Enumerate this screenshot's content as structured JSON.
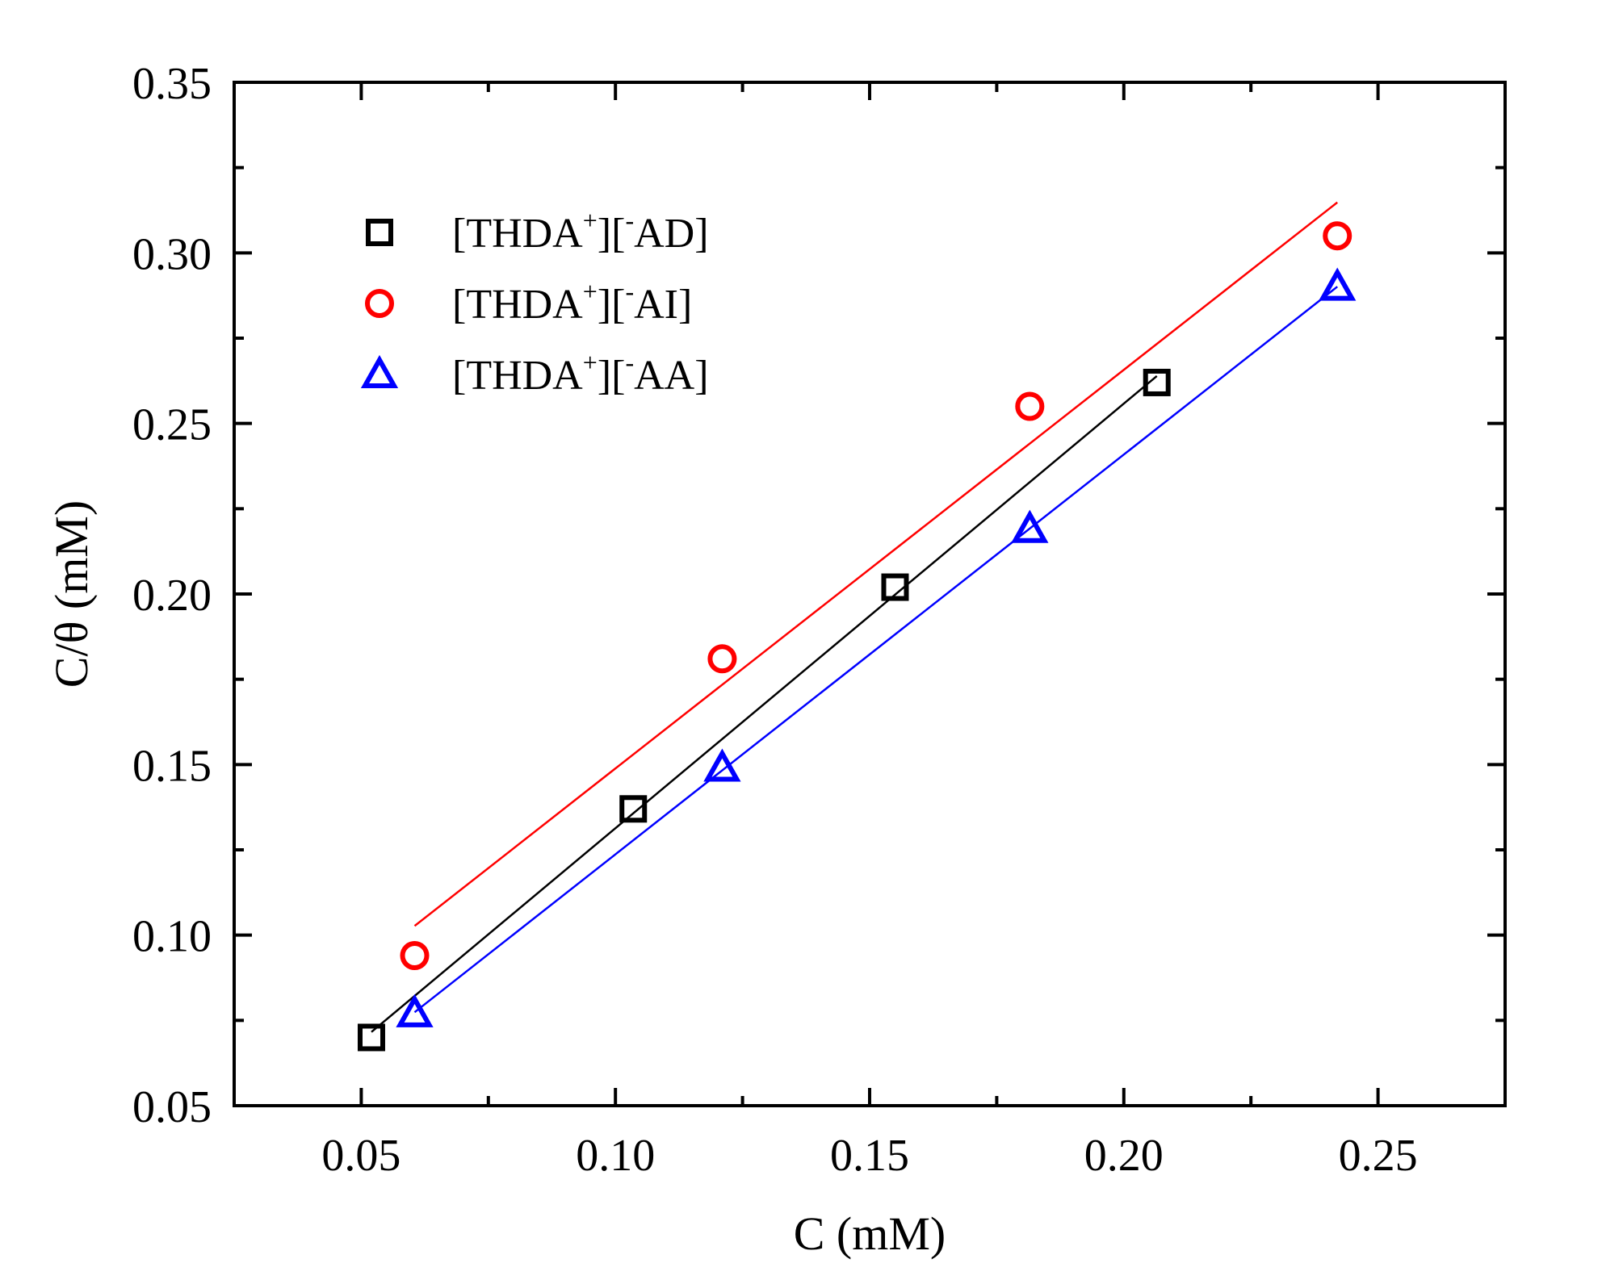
{
  "chart_data": {
    "type": "scatter",
    "title": "",
    "xlabel": "C (mM)",
    "ylabel": "C/θ (mM)",
    "xlim": [
      0.025,
      0.275
    ],
    "ylim": [
      0.05,
      0.35
    ],
    "xticks": [
      0.05,
      0.1,
      0.15,
      0.2,
      0.25
    ],
    "yticks": [
      0.05,
      0.1,
      0.15,
      0.2,
      0.25,
      0.3,
      0.35
    ],
    "xtick_labels": [
      "0.05",
      "0.10",
      "0.15",
      "0.20",
      "0.25"
    ],
    "ytick_labels": [
      "0.05",
      "0.10",
      "0.15",
      "0.20",
      "0.25",
      "0.30",
      "0.35"
    ],
    "grid": false,
    "legend_position": "top-left",
    "series": [
      {
        "name": "[THDA+][-AD]",
        "legend_parts": [
          "[THDA",
          "+",
          "][",
          "-",
          "AD]"
        ],
        "marker": "square",
        "color": "#000000",
        "x": [
          0.052,
          0.1035,
          0.155,
          0.2065
        ],
        "y": [
          0.07,
          0.137,
          0.202,
          0.262
        ],
        "fit_x": [
          0.052,
          0.2065
        ]
      },
      {
        "name": "[THDA+][-AI]",
        "legend_parts": [
          "[THDA",
          "+",
          "][",
          "-",
          "AI]"
        ],
        "marker": "circle",
        "color": "#ff0000",
        "x": [
          0.0605,
          0.121,
          0.1815,
          0.242
        ],
        "y": [
          0.094,
          0.181,
          0.255,
          0.305
        ],
        "fit_x": [
          0.0605,
          0.242
        ]
      },
      {
        "name": "[THDA+][-AA]",
        "legend_parts": [
          "[THDA",
          "+",
          "][",
          "-",
          "AA]"
        ],
        "marker": "triangle",
        "color": "#0000ff",
        "x": [
          0.0605,
          0.121,
          0.1815,
          0.242
        ],
        "y": [
          0.077,
          0.149,
          0.219,
          0.29
        ],
        "fit_x": [
          0.0605,
          0.242
        ]
      }
    ]
  }
}
